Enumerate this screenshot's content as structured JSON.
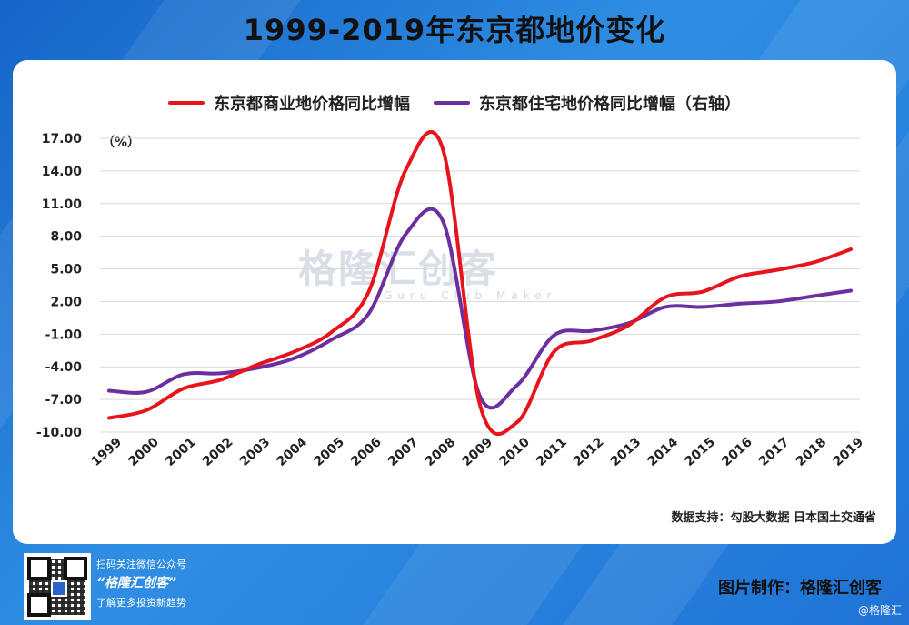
{
  "title": "1999-2019年东京都地价变化",
  "unit_label": "（%）",
  "source": "数据支持：勾股大数据  日本国土交通省",
  "watermark": {
    "text": "格隆汇创客",
    "sub": "Guru Club Maker"
  },
  "footer": {
    "line1": "扫码关注微信公众号",
    "brand": "“格隆汇创客”",
    "line2": "了解更多投资新趋势",
    "maker": "图片制作：格隆汇创客",
    "credit": "@格隆汇"
  },
  "colors": {
    "commercial": "#e8141c",
    "residential": "#6b2fa0",
    "grid": "#d9d9d9"
  },
  "chart_data": {
    "type": "line",
    "title": "1999-2019年东京都地价变化",
    "x": [
      "1999",
      "2000",
      "2001",
      "2002",
      "2003",
      "2004",
      "2005",
      "2006",
      "2007",
      "2008",
      "2009",
      "2010",
      "2011",
      "2012",
      "2013",
      "2014",
      "2015",
      "2016",
      "2017",
      "2018",
      "2019"
    ],
    "yticks": [
      17,
      14,
      11,
      8,
      5,
      2,
      -1,
      -4,
      -7,
      -10
    ],
    "ytick_labels": [
      "17.00",
      "14.00",
      "11.00",
      "8.00",
      "5.00",
      "2.00",
      "-1.00",
      "-4.00",
      "-7.00",
      "-10.00"
    ],
    "ylim": [
      -10,
      17
    ],
    "grid": true,
    "legend_position": "top",
    "series": [
      {
        "name": "东京都商业地价格同比增幅",
        "color": "#e8141c",
        "values": [
          -8.7,
          -8.0,
          -6.0,
          -5.2,
          -3.8,
          -2.6,
          -0.8,
          2.9,
          14.1,
          16.0,
          -7.5,
          -9.1,
          -2.6,
          -1.6,
          -0.2,
          2.4,
          2.9,
          4.3,
          4.9,
          5.6,
          6.8
        ]
      },
      {
        "name": "东京都住宅地价格同比增幅（右轴）",
        "color": "#6b2fa0",
        "values": [
          -6.2,
          -6.3,
          -4.7,
          -4.6,
          -4.1,
          -3.2,
          -1.5,
          0.9,
          8.2,
          9.4,
          -6.7,
          -5.7,
          -1.1,
          -0.7,
          0.0,
          1.5,
          1.5,
          1.8,
          2.0,
          2.5,
          3.0
        ]
      }
    ]
  }
}
